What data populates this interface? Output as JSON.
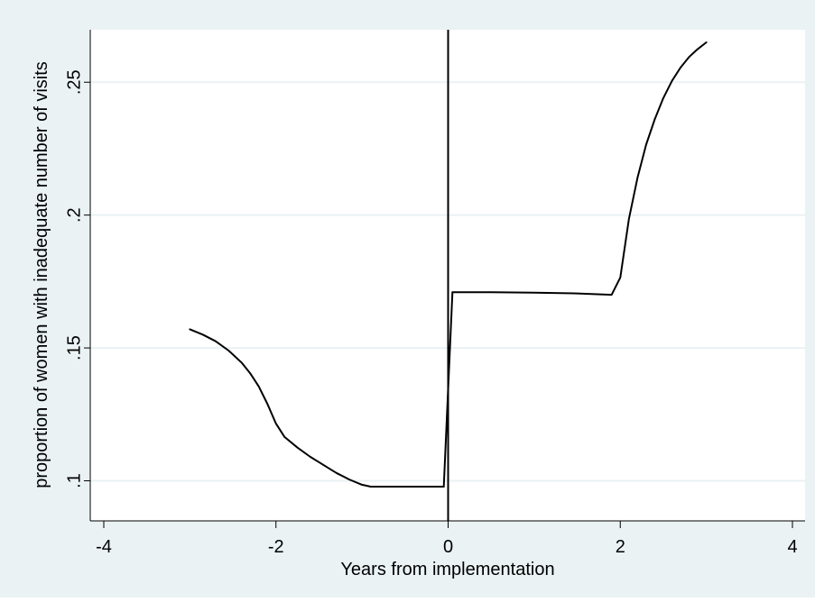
{
  "chart_data": {
    "type": "line",
    "title": "",
    "xlabel": "Years from implementation",
    "ylabel": "proportion of women with inadequate number of visits",
    "xlim": [
      -4,
      4
    ],
    "ylim": [
      0.09,
      0.265
    ],
    "x_ticks": [
      -4,
      -2,
      0,
      2,
      4
    ],
    "x_tick_labels": [
      "-4",
      "-2",
      "0",
      "2",
      "4"
    ],
    "y_ticks": [
      0.1,
      0.15,
      0.2,
      0.25
    ],
    "y_tick_labels": [
      ".1",
      ".15",
      ".2",
      ".25"
    ],
    "grid": true,
    "legend": "none",
    "vertical_line_at": 0,
    "colors": {
      "background": "#eaf2f3",
      "plot_area": "#ffffff",
      "gridline": "#eaf2f3",
      "line": "#000000"
    },
    "series": [
      {
        "x": [
          -3.0,
          -2.85,
          -2.7,
          -2.55,
          -2.4,
          -2.3,
          -2.2,
          -2.1,
          -2.0,
          -1.9,
          -1.75,
          -1.6,
          -1.45,
          -1.3,
          -1.15,
          -1.0,
          -0.9,
          -0.5,
          -0.05
        ],
        "y": [
          0.157,
          0.155,
          0.1525,
          0.149,
          0.1445,
          0.1405,
          0.1355,
          0.129,
          0.1215,
          0.1165,
          0.1125,
          0.109,
          0.106,
          0.103,
          0.1005,
          0.0985,
          0.0978,
          0.0978,
          0.0978
        ]
      },
      {
        "x": [
          -0.05,
          0.05
        ],
        "y": [
          0.0978,
          0.171
        ]
      },
      {
        "x": [
          0.05,
          0.5,
          1.0,
          1.5,
          1.8,
          1.9,
          2.0,
          2.1,
          2.2,
          2.3,
          2.4,
          2.5,
          2.6,
          2.7,
          2.8,
          2.9,
          3.0
        ],
        "y": [
          0.171,
          0.171,
          0.1708,
          0.1705,
          0.1701,
          0.17,
          0.1765,
          0.1985,
          0.214,
          0.2265,
          0.236,
          0.244,
          0.2505,
          0.2555,
          0.2595,
          0.2625,
          0.265
        ]
      }
    ]
  }
}
